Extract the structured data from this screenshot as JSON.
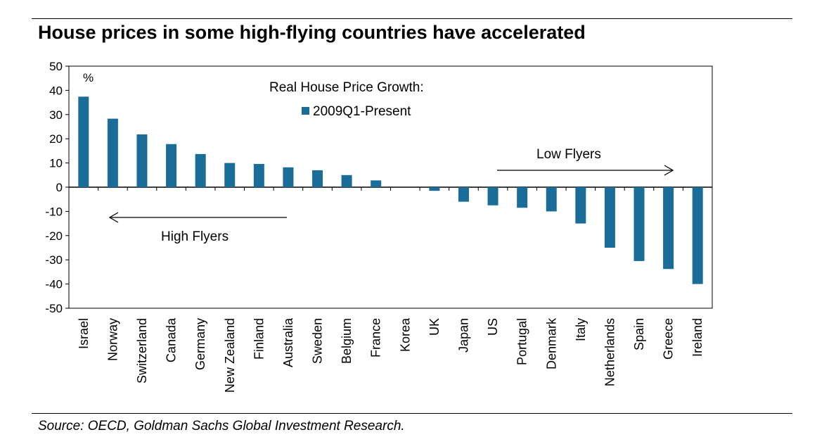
{
  "title": "House prices in some high-flying countries have accelerated",
  "source": "Source:  OECD, Goldman Sachs Global Investment Research.",
  "chart_data": {
    "type": "bar",
    "unit_label": "%",
    "legend_title": "Real House Price Growth:",
    "categories": [
      "Israel",
      "Norway",
      "Switzerland",
      "Canada",
      "Germany",
      "New Zealand",
      "Finland",
      "Australia",
      "Sweden",
      "Belgium",
      "France",
      "Korea",
      "UK",
      "Japan",
      "US",
      "Portugal",
      "Denmark",
      "Italy",
      "Netherlands",
      "Spain",
      "Greece",
      "Ireland"
    ],
    "series": [
      {
        "name": "2009Q1-Present",
        "color": "#1a6d98",
        "values": [
          37.4,
          28.3,
          21.8,
          17.8,
          13.7,
          10.0,
          9.6,
          8.2,
          7.0,
          5.0,
          2.8,
          0.0,
          -1.5,
          -6.0,
          -7.5,
          -8.5,
          -10.0,
          -15.0,
          -25.0,
          -30.5,
          -33.8,
          -40.0
        ]
      }
    ],
    "ylim": [
      -50,
      50
    ],
    "yticks": [
      -50,
      -40,
      -30,
      -20,
      -10,
      0,
      10,
      20,
      30,
      40,
      50
    ],
    "annotations": {
      "high_flyers": "High Flyers",
      "low_flyers": "Low Flyers"
    },
    "grid": false,
    "legend_position": "top-center"
  }
}
